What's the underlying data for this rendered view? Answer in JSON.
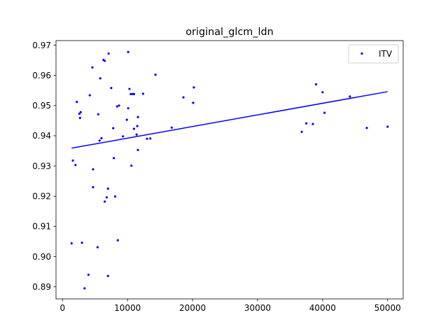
{
  "chart_data": {
    "type": "scatter",
    "title": "original_glcm_ldn",
    "xlabel": "",
    "ylabel": "",
    "xlim": [
      -1000,
      52400
    ],
    "ylim": [
      0.886,
      0.9715
    ],
    "xticks": [
      0,
      10000,
      20000,
      30000,
      40000,
      50000
    ],
    "xtick_labels": [
      "0",
      "10000",
      "20000",
      "30000",
      "40000",
      "50000"
    ],
    "yticks": [
      0.89,
      0.9,
      0.91,
      0.92,
      0.93,
      0.94,
      0.95,
      0.96,
      0.97
    ],
    "ytick_labels": [
      "0.89",
      "0.90",
      "0.91",
      "0.92",
      "0.93",
      "0.94",
      "0.95",
      "0.96",
      "0.97"
    ],
    "grid": false,
    "legend": {
      "position": "top-right",
      "entries": [
        "ITV"
      ]
    },
    "colors": {
      "points": "#0000ff",
      "fit_line": "#0000ff",
      "axes": "#000000"
    },
    "series": [
      {
        "name": "ITV",
        "kind": "scatter",
        "points": [
          [
            1400,
            0.9044
          ],
          [
            1600,
            0.9318
          ],
          [
            2000,
            0.9303
          ],
          [
            2200,
            0.9512
          ],
          [
            2600,
            0.9473
          ],
          [
            2700,
            0.9459
          ],
          [
            2800,
            0.9478
          ],
          [
            3000,
            0.9046
          ],
          [
            3400,
            0.8895
          ],
          [
            4000,
            0.894
          ],
          [
            4200,
            0.9534
          ],
          [
            4600,
            0.9626
          ],
          [
            4700,
            0.923
          ],
          [
            4700,
            0.9289
          ],
          [
            5400,
            0.9031
          ],
          [
            5500,
            0.9471
          ],
          [
            5700,
            0.9384
          ],
          [
            5800,
            0.959
          ],
          [
            6000,
            0.9392
          ],
          [
            6300,
            0.9651
          ],
          [
            6500,
            0.9648
          ],
          [
            6500,
            0.9182
          ],
          [
            6800,
            0.9196
          ],
          [
            7000,
            0.9225
          ],
          [
            7000,
            0.8936
          ],
          [
            7100,
            0.9672
          ],
          [
            7500,
            0.9558
          ],
          [
            7800,
            0.9425
          ],
          [
            7900,
            0.9326
          ],
          [
            8100,
            0.9199
          ],
          [
            8400,
            0.9497
          ],
          [
            8500,
            0.9054
          ],
          [
            8700,
            0.95
          ],
          [
            9300,
            0.9398
          ],
          [
            9900,
            0.9453
          ],
          [
            10100,
            0.9491
          ],
          [
            10100,
            0.9677
          ],
          [
            10300,
            0.9555
          ],
          [
            10500,
            0.9538
          ],
          [
            10600,
            0.9301
          ],
          [
            10800,
            0.9538
          ],
          [
            11000,
            0.9538
          ],
          [
            11000,
            0.9423
          ],
          [
            11400,
            0.9404
          ],
          [
            11500,
            0.9432
          ],
          [
            11600,
            0.9462
          ],
          [
            11600,
            0.9353
          ],
          [
            12400,
            0.9539
          ],
          [
            13000,
            0.939
          ],
          [
            13500,
            0.9391
          ],
          [
            14300,
            0.9602
          ],
          [
            16800,
            0.9427
          ],
          [
            18600,
            0.9527
          ],
          [
            20100,
            0.9509
          ],
          [
            20200,
            0.956
          ],
          [
            36800,
            0.9413
          ],
          [
            37500,
            0.9441
          ],
          [
            38500,
            0.9439
          ],
          [
            39000,
            0.957
          ],
          [
            40000,
            0.9544
          ],
          [
            40300,
            0.9476
          ],
          [
            44200,
            0.953
          ],
          [
            46800,
            0.9426
          ],
          [
            50000,
            0.943
          ]
        ]
      },
      {
        "name": "",
        "kind": "fit_line",
        "points": [
          [
            1400,
            0.9359
          ],
          [
            50000,
            0.9546
          ]
        ]
      }
    ]
  }
}
